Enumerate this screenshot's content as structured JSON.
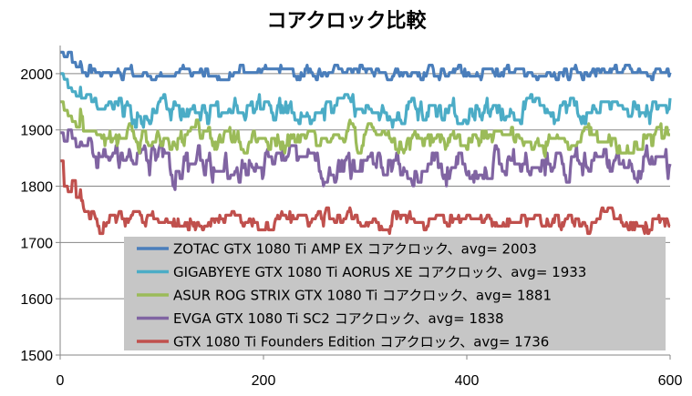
{
  "chart_data": {
    "type": "line",
    "title": "コアクロック比較",
    "xlabel": "",
    "ylabel": "",
    "xlim": [
      0,
      600
    ],
    "ylim": [
      1500,
      2050
    ],
    "xticks": [
      0,
      200,
      400,
      600
    ],
    "yticks": [
      1500,
      1600,
      1700,
      1800,
      1900,
      2000
    ],
    "grid": "horizontal",
    "legend_position": "bottom-right",
    "series": [
      {
        "name": "ZOTAC GTX 1080 Ti AMP EX コアクロック、avg= 2003",
        "color": "#4a7ebb",
        "avg": 2003,
        "start": [
          2038,
          2030,
          2038,
          2020,
          2012
        ],
        "max": 2024,
        "min": 1987,
        "noise": 9
      },
      {
        "name": "GIGABYEYE  GTX 1080 Ti AORUS XE コアクロック、avg= 1933",
        "color": "#4bacc6",
        "avg": 1933,
        "start": [
          2000,
          1990,
          1975,
          1968,
          1960
        ],
        "max": 1975,
        "min": 1905,
        "noise": 17
      },
      {
        "name": "ASUR ROG STRIX GTX 1080 Ti コアクロック、avg= 1881",
        "color": "#9bbb59",
        "avg": 1881,
        "start": [
          1950,
          1935,
          1925,
          1915,
          1905
        ],
        "max": 1935,
        "min": 1850,
        "noise": 17
      },
      {
        "name": "EVGA GTX 1080 Ti SC2 コアクロック、avg= 1838",
        "color": "#8064a2",
        "avg": 1838,
        "start": [
          1895,
          1880,
          1900,
          1885,
          1870
        ],
        "max": 1900,
        "min": 1795,
        "noise": 22
      },
      {
        "name": "GTX 1080 Ti Founders Edition コアクロック、avg= 1736",
        "color": "#c0504d",
        "avg": 1736,
        "start": [
          1845,
          1800,
          1790,
          1810,
          1780
        ],
        "max": 1800,
        "min": 1705,
        "noise": 13
      }
    ],
    "samples": 601
  }
}
